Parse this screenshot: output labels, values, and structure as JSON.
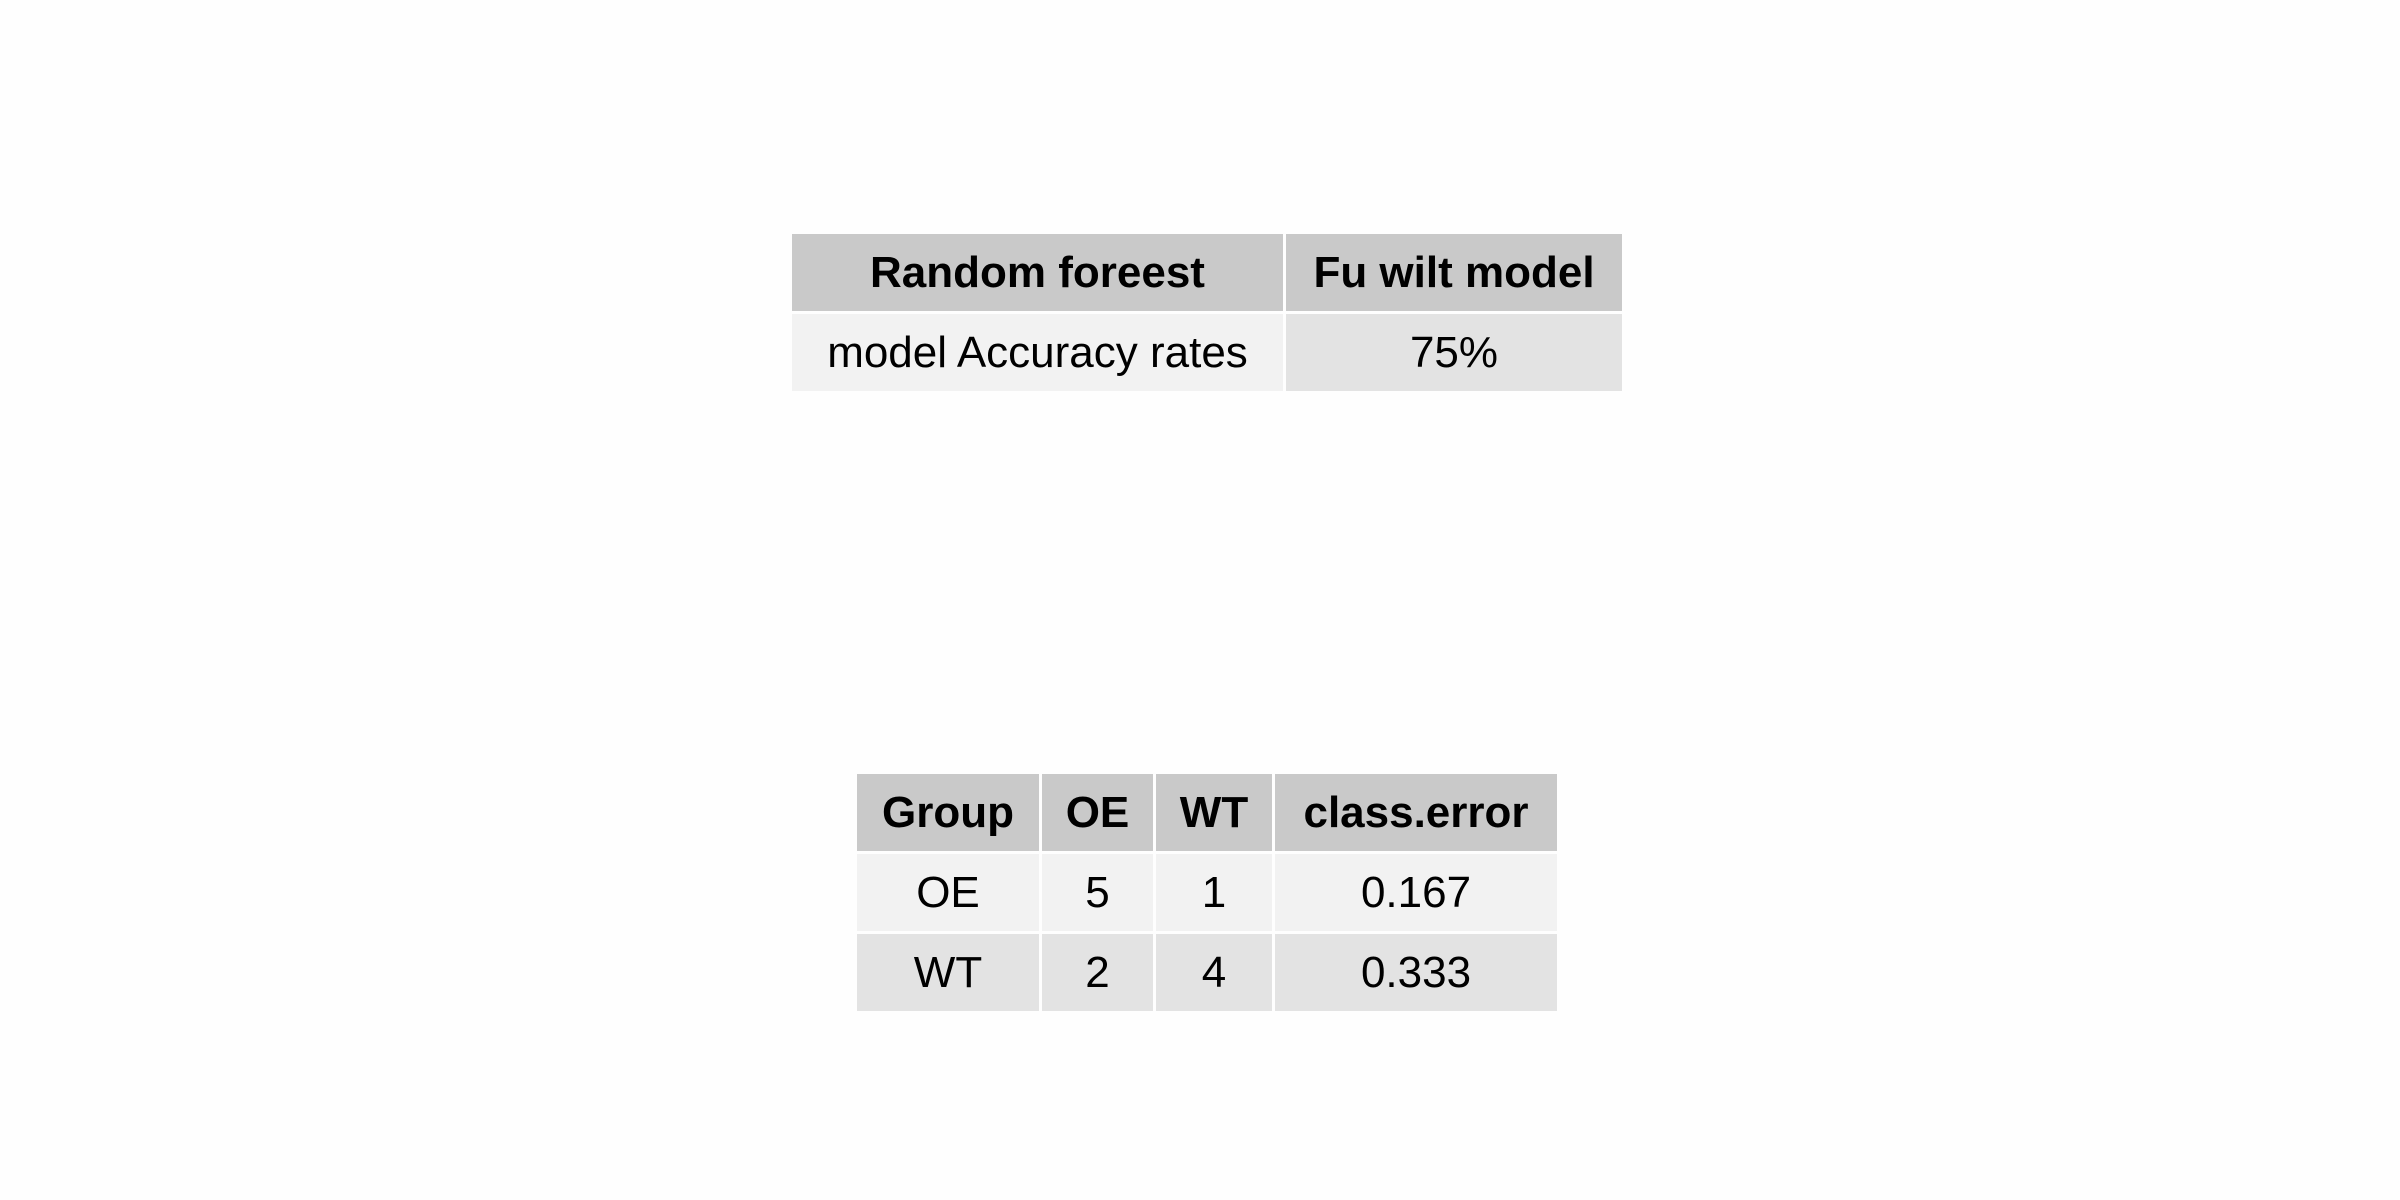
{
  "accuracy_table": {
    "headers": [
      "Random foreest",
      "Fu wilt model"
    ],
    "row": {
      "label": "model Accuracy rates",
      "value": "75%"
    }
  },
  "confusion_table": {
    "headers": [
      "Group",
      "OE",
      "WT",
      "class.error"
    ],
    "rows": [
      [
        "OE",
        "5",
        "1",
        "0.167"
      ],
      [
        "WT",
        "2",
        "4",
        "0.333"
      ]
    ]
  },
  "colors": {
    "header_bg": "#c9c9c9",
    "row_light": "#f2f2f2",
    "row_dark": "#e3e3e3",
    "page_bg": "#fefefe"
  }
}
